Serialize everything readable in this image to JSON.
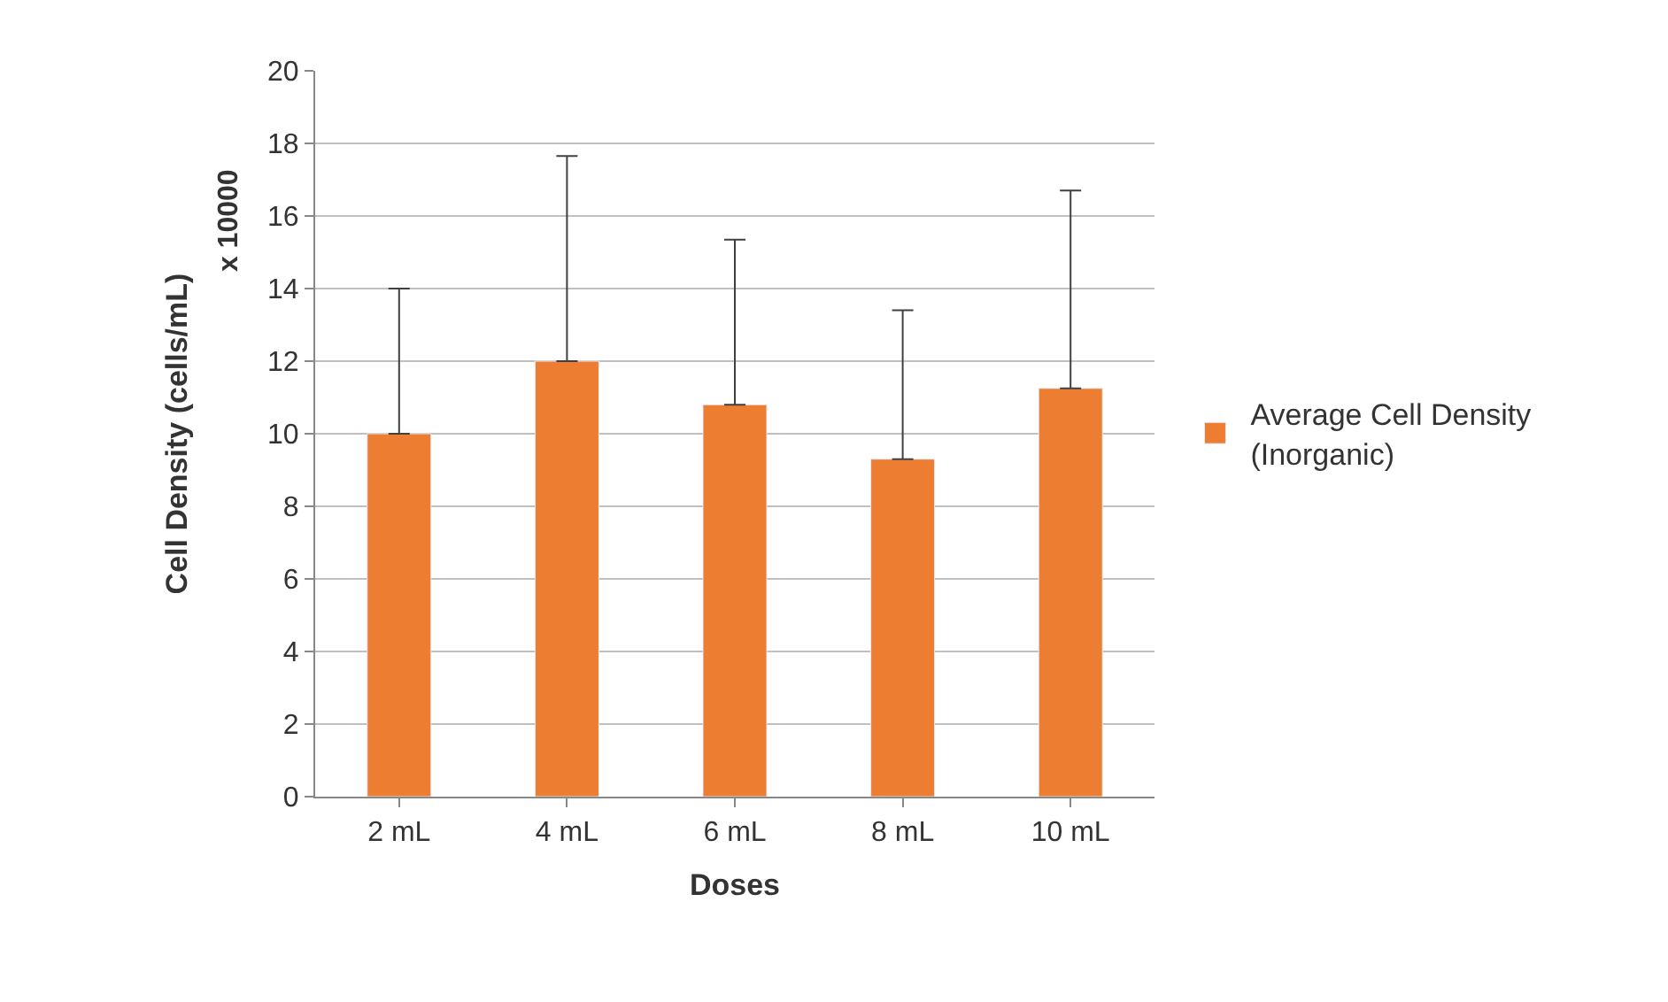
{
  "chart_data": {
    "type": "bar",
    "xlabel": "Doses",
    "ylabel": "Cell Density (cells/mL)",
    "annotations": [
      "x 10000"
    ],
    "categories": [
      "2 mL",
      "4 mL",
      "6 mL",
      "8 mL",
      "10 mL"
    ],
    "series": [
      {
        "name": "Average Cell Density (Inorganic)",
        "color": "#ed7d31",
        "values": [
          10.0,
          12.0,
          10.8,
          9.3,
          11.25
        ],
        "errors": [
          [
            10.0,
            14.0
          ],
          [
            12.0,
            17.65
          ],
          [
            10.8,
            15.35
          ],
          [
            9.3,
            13.4
          ],
          [
            11.25,
            16.7
          ]
        ]
      }
    ],
    "ylim": [
      0,
      20
    ],
    "yticks": [
      0,
      2,
      4,
      6,
      8,
      10,
      12,
      14,
      16,
      18,
      20
    ],
    "grid": "y",
    "legend": "right"
  }
}
